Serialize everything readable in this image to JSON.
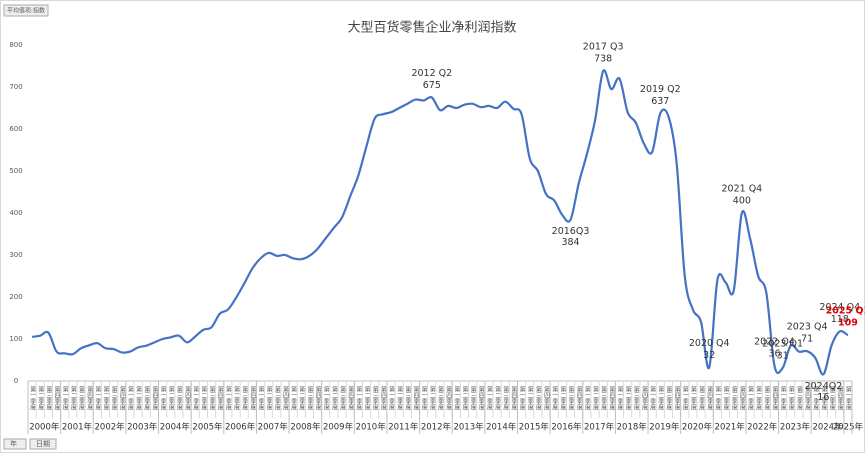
{
  "chart_data": {
    "type": "line",
    "title": "大型百货零售企业净利润指数",
    "field_button": "平均值项:指数",
    "row_buttons": [
      "年",
      "日期"
    ],
    "years": [
      "2000年",
      "2001年",
      "2002年",
      "2003年",
      "2004年",
      "2005年",
      "2006年",
      "2007年",
      "2008年",
      "2009年",
      "2010年",
      "2011年",
      "2012年",
      "2013年",
      "2014年",
      "2015年",
      "2016年",
      "2017年",
      "2018年",
      "2019年",
      "2020年",
      "2021年",
      "2022年",
      "2023年",
      "2024年",
      "2025年"
    ],
    "quarters": [
      "第一季度",
      "第二季度",
      "第三季度",
      "第四季度"
    ],
    "color": "#4472c4",
    "values": [
      105,
      108,
      115,
      70,
      66,
      64,
      78,
      85,
      90,
      78,
      76,
      68,
      70,
      80,
      84,
      92,
      100,
      104,
      108,
      92,
      106,
      122,
      128,
      160,
      170,
      198,
      232,
      268,
      292,
      305,
      298,
      300,
      292,
      290,
      298,
      315,
      340,
      365,
      390,
      440,
      490,
      560,
      625,
      635,
      640,
      650,
      660,
      670,
      668,
      675,
      645,
      655,
      650,
      658,
      660,
      652,
      655,
      650,
      665,
      648,
      635,
      530,
      500,
      445,
      430,
      395,
      384,
      470,
      540,
      620,
      738,
      695,
      720,
      640,
      615,
      565,
      545,
      637,
      630,
      520,
      250,
      170,
      140,
      32,
      240,
      235,
      215,
      400,
      340,
      250,
      210,
      36,
      31,
      85,
      70,
      71,
      55,
      16,
      85,
      118,
      109
    ],
    "ylim": [
      0,
      800
    ],
    "yticks": [
      0,
      100,
      200,
      300,
      400,
      500,
      600,
      700,
      800
    ],
    "grid": false,
    "annotations": [
      {
        "text": "2012 Q2",
        "index": 49
      },
      {
        "text": "2016Q3",
        "index": 66,
        "below": true
      },
      {
        "text": "2017 Q3",
        "index": 70
      },
      {
        "text": "2019 Q2",
        "index": 77
      },
      {
        "text": "2020 Q4",
        "index": 83
      },
      {
        "text": "2021 Q4",
        "index": 87
      },
      {
        "text": "2022 Q4",
        "index": 91
      },
      {
        "text": "2023 Q1",
        "index": 92
      },
      {
        "text": "2023 Q4",
        "index": 95
      },
      {
        "text": "2024Q2",
        "index": 97,
        "below": true
      },
      {
        "text": "2024 Q4",
        "index": 99
      },
      {
        "text": "2025 Q1",
        "index": 100,
        "color": "#e00000"
      }
    ]
  }
}
